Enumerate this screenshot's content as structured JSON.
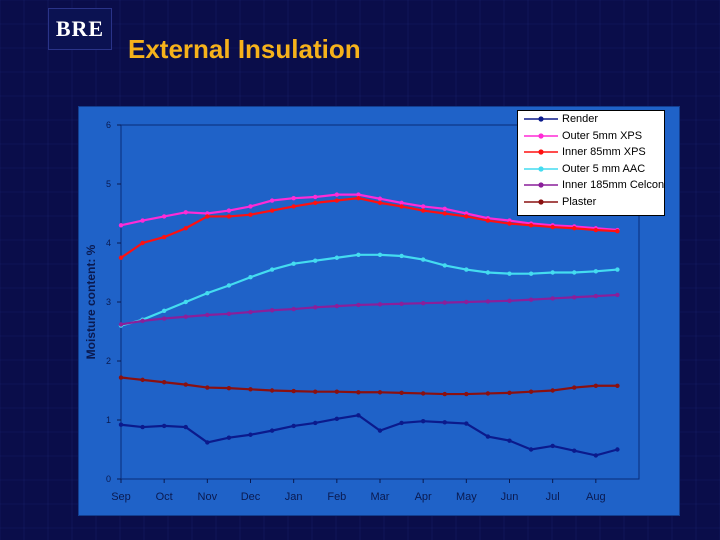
{
  "logo_text": "BRE",
  "slide_title": "External Insulation",
  "colors": {
    "background": "#0a0d4a",
    "title": "#f6b21b",
    "chart_panel": "#1f62c8"
  },
  "chart_data": {
    "type": "line",
    "title": "",
    "xlabel": "",
    "ylabel": "Moisture content: %",
    "ylim": [
      0,
      6
    ],
    "yticks": [
      "0",
      "1",
      "2",
      "3",
      "4",
      "5",
      "6"
    ],
    "categories": [
      "Sep",
      "Oct",
      "Nov",
      "Dec",
      "Jan",
      "Feb",
      "Mar",
      "Apr",
      "May",
      "Jun",
      "Jul",
      "Aug"
    ],
    "x": [
      0,
      0.5,
      1,
      1.5,
      2,
      2.5,
      3,
      3.5,
      4,
      4.5,
      5,
      5.5,
      6,
      6.5,
      7,
      7.5,
      8,
      8.5,
      9,
      9.5,
      10,
      10.5,
      11,
      11.5
    ],
    "series": [
      {
        "name": "Render",
        "color": "#0b1a8c",
        "marker": "diamond",
        "values": [
          0.92,
          0.88,
          0.9,
          0.88,
          0.62,
          0.7,
          0.75,
          0.82,
          0.9,
          0.95,
          1.02,
          1.08,
          0.82,
          0.95,
          0.98,
          0.96,
          0.94,
          0.72,
          0.65,
          0.5,
          0.56,
          0.48,
          0.4,
          0.5
        ]
      },
      {
        "name": "Outer 5mm XPS",
        "color": "#ff2bd6",
        "marker": "square",
        "values": [
          4.3,
          4.38,
          4.45,
          4.52,
          4.5,
          4.55,
          4.62,
          4.72,
          4.76,
          4.78,
          4.82,
          4.82,
          4.75,
          4.68,
          4.62,
          4.58,
          4.5,
          4.42,
          4.38,
          4.33,
          4.3,
          4.28,
          4.25,
          4.22
        ]
      },
      {
        "name": "Inner 85mm XPS",
        "color": "#ff1010",
        "marker": "triangle",
        "values": [
          3.75,
          4.0,
          4.1,
          4.25,
          4.45,
          4.45,
          4.48,
          4.55,
          4.62,
          4.68,
          4.72,
          4.76,
          4.68,
          4.62,
          4.55,
          4.5,
          4.45,
          4.38,
          4.33,
          4.3,
          4.27,
          4.25,
          4.22,
          4.2
        ]
      },
      {
        "name": "Outer 5 mm AAC",
        "color": "#44dcf0",
        "marker": "x",
        "values": [
          2.6,
          2.7,
          2.85,
          3.0,
          3.15,
          3.28,
          3.42,
          3.55,
          3.65,
          3.7,
          3.75,
          3.8,
          3.8,
          3.78,
          3.72,
          3.62,
          3.55,
          3.5,
          3.48,
          3.48,
          3.5,
          3.5,
          3.52,
          3.55
        ]
      },
      {
        "name": "Inner 185mm Celcon",
        "color": "#8a1f9a",
        "marker": "star",
        "values": [
          2.62,
          2.68,
          2.72,
          2.75,
          2.78,
          2.8,
          2.83,
          2.86,
          2.88,
          2.91,
          2.93,
          2.95,
          2.96,
          2.97,
          2.98,
          2.99,
          3.0,
          3.01,
          3.02,
          3.04,
          3.06,
          3.08,
          3.1,
          3.12
        ]
      },
      {
        "name": "Plaster",
        "color": "#8a1010",
        "marker": "square",
        "values": [
          1.72,
          1.68,
          1.64,
          1.6,
          1.55,
          1.54,
          1.52,
          1.5,
          1.49,
          1.48,
          1.48,
          1.47,
          1.47,
          1.46,
          1.45,
          1.44,
          1.44,
          1.45,
          1.46,
          1.48,
          1.5,
          1.55,
          1.58,
          1.58
        ]
      }
    ]
  }
}
